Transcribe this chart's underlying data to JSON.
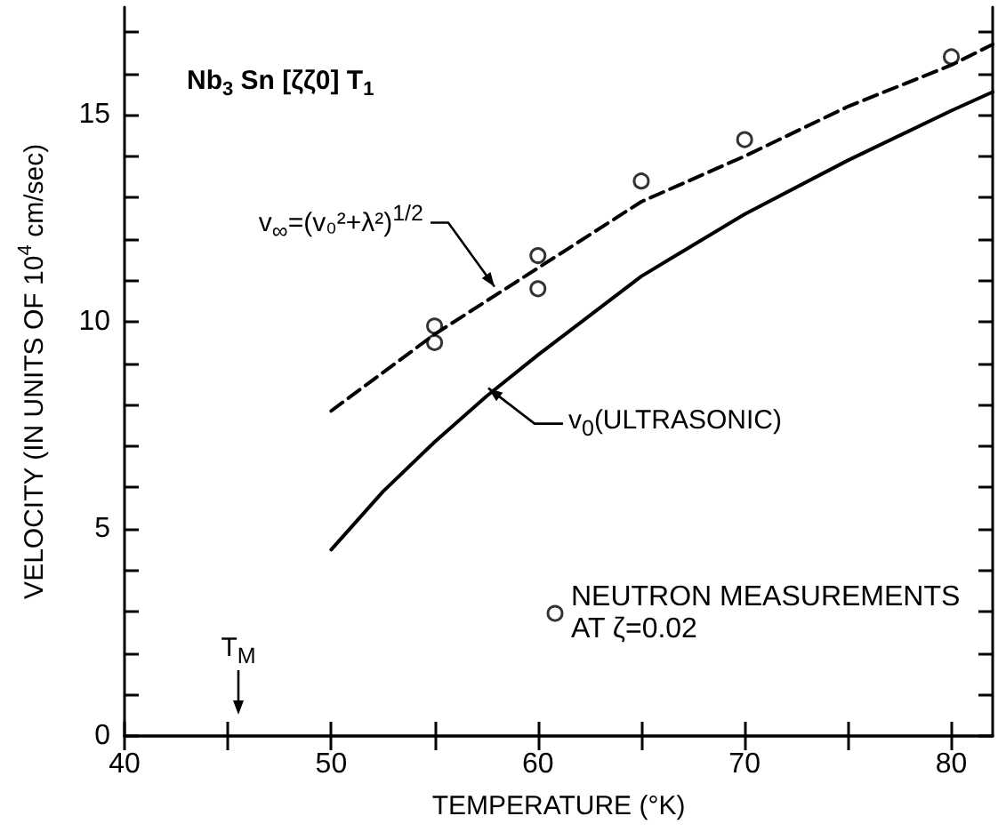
{
  "chart_data": {
    "type": "line",
    "title": "Nb$_{3}$ Sn [ζζ0] T$_{1}$",
    "xlabel": "TEMPERATURE (°K)",
    "ylabel": "VELOCITY (IN UNITS OF 10$^{4}$ cm/sec)",
    "xlim": [
      40,
      82
    ],
    "ylim": [
      0,
      17.6
    ],
    "xticks": [
      40,
      {
        "value": 45,
        "label": null
      },
      50,
      {
        "value": 55,
        "label": null
      },
      60,
      {
        "value": 65,
        "label": null
      },
      70,
      {
        "value": 75,
        "label": null
      },
      80
    ],
    "yticks": [
      0,
      {
        "value": 1,
        "label": null
      },
      {
        "value": 2,
        "label": null
      },
      {
        "value": 3,
        "label": null
      },
      {
        "value": 4,
        "label": null
      },
      5,
      {
        "value": 6,
        "label": null
      },
      {
        "value": 7,
        "label": null
      },
      {
        "value": 8,
        "label": null
      },
      {
        "value": 9,
        "label": null
      },
      10,
      {
        "value": 11,
        "label": null
      },
      {
        "value": 12,
        "label": null
      },
      {
        "value": 13,
        "label": null
      },
      {
        "value": 14,
        "label": null
      },
      15,
      {
        "value": 16,
        "label": null
      },
      {
        "value": 17,
        "label": null
      }
    ],
    "grid": false,
    "legend": "bottom right",
    "series": [
      {
        "color": "#000000",
        "line_style": "dashed",
        "marker": "none",
        "x": [
          50,
          55,
          60,
          65,
          70,
          75,
          80,
          82
        ],
        "values": [
          7.85,
          9.7,
          11.3,
          12.9,
          14.0,
          15.2,
          16.2,
          16.7
        ]
      },
      {
        "color": "#000000",
        "line_style": "solid",
        "marker": "none",
        "x": [
          50,
          52.5,
          55,
          57.5,
          60,
          65,
          70,
          75,
          80,
          82
        ],
        "values": [
          4.5,
          5.9,
          7.1,
          8.2,
          9.2,
          11.1,
          12.6,
          13.9,
          15.1,
          15.55
        ]
      },
      {
        "type": "scatter",
        "name": "NEUTRON MEASUREMENTS AT ζ=0.02",
        "color": "#000000",
        "marker": "circle",
        "x": [
          55,
          55,
          60,
          60,
          65,
          70,
          80
        ],
        "values": [
          9.9,
          9.5,
          11.6,
          10.8,
          13.4,
          14.4,
          16.4
        ]
      }
    ],
    "annotations": [
      {
        "text": "v$_{∞}$=(v₀²+λ²)$^{1/2}$",
        "x": 57.9,
        "y": 10.85
      },
      {
        "text": "v$_{0}$(ULTRASONIC)",
        "x": 57.6,
        "y": 8.4
      },
      "T$_{M}$"
    ]
  }
}
